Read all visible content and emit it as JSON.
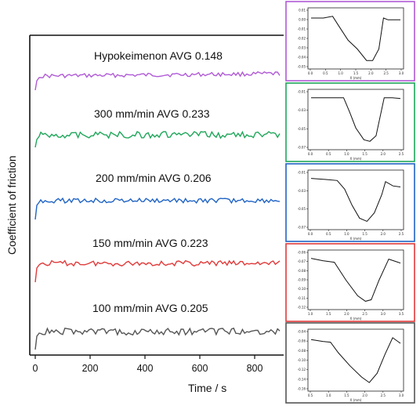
{
  "chart_data": [
    {
      "type": "line",
      "xlabel": "Time / s",
      "ylabel": "Coefficient of friction",
      "x_ticks": [
        0,
        200,
        400,
        600,
        800
      ],
      "xlim": [
        0,
        900
      ],
      "series": [
        {
          "name": "Hypokeimenon",
          "label": "Hypokeimenon AVG 0.148",
          "avg": 0.148,
          "color": "#b05ad6"
        },
        {
          "name": "300 mm/min",
          "label": "300 mm/min AVG 0.233",
          "avg": 0.233,
          "color": "#1fa65a"
        },
        {
          "name": "200 mm/min",
          "label": "200 mm/min AVG 0.206",
          "avg": 0.206,
          "color": "#1f63c4"
        },
        {
          "name": "150 mm/min",
          "label": "150 mm/min AVG 0.223",
          "avg": 0.223,
          "color": "#e03a3a"
        },
        {
          "name": "100 mm/min",
          "label": "100 mm/min AVG 0.205",
          "avg": 0.205,
          "color": "#555555"
        }
      ]
    },
    {
      "type": "line",
      "border_color": "#b05ad6",
      "xlabel": "X (mm)",
      "x_ticks": [
        "0.0",
        "0.5",
        "1.0",
        "1.5",
        "2.0",
        "2.5",
        "3.0"
      ],
      "y_ticks": [
        "0.01",
        "0.00",
        "-0.01",
        "-0.02",
        "-0.03",
        "-0.04",
        "-0.05"
      ],
      "x": [
        0.0,
        0.4,
        0.7,
        0.9,
        1.2,
        1.5,
        1.8,
        2.0,
        2.2,
        2.35,
        2.5,
        2.9
      ],
      "y": [
        0.005,
        0.005,
        0.007,
        -0.004,
        -0.02,
        -0.03,
        -0.043,
        -0.043,
        -0.03,
        0.005,
        0.003,
        0.003
      ]
    },
    {
      "type": "line",
      "border_color": "#1fa65a",
      "xlabel": "X (mm)",
      "x_ticks": [
        "0.0",
        "0.5",
        "1.0",
        "1.5",
        "2.0",
        "2.5"
      ],
      "y_ticks": [
        "-0.01",
        "-0.03",
        "-0.05",
        "-0.07"
      ],
      "x": [
        0.0,
        0.3,
        0.8,
        0.95,
        1.1,
        1.3,
        1.45,
        1.6,
        1.8,
        2.0,
        2.2
      ],
      "y": [
        -0.012,
        -0.012,
        -0.012,
        -0.03,
        -0.05,
        -0.065,
        -0.067,
        -0.06,
        -0.012,
        -0.012,
        -0.013
      ]
    },
    {
      "type": "line",
      "border_color": "#1f63c4",
      "xlabel": "X (mm)",
      "x_ticks": [
        "0.0",
        "0.5",
        "1.0",
        "1.5",
        "2.0",
        "2.5"
      ],
      "y_ticks": [
        "-0.01",
        "-0.03",
        "-0.05",
        "-0.07"
      ],
      "x": [
        0.0,
        0.4,
        0.7,
        0.9,
        1.1,
        1.3,
        1.5,
        1.7,
        1.9,
        2.0,
        2.2,
        2.4
      ],
      "y": [
        -0.015,
        -0.016,
        -0.017,
        -0.025,
        -0.04,
        -0.052,
        -0.055,
        -0.047,
        -0.03,
        -0.018,
        -0.022,
        -0.023
      ]
    },
    {
      "type": "line",
      "border_color": "#e03a3a",
      "xlabel": "X (mm)",
      "x_ticks": [
        "1.0",
        "1.5",
        "2.0",
        "2.5",
        "3.0",
        "3.5"
      ],
      "y_ticks": [
        "-0.06",
        "-0.07",
        "-0.08",
        "-0.09",
        "-0.10",
        "-0.11",
        "-0.12"
      ],
      "x": [
        1.0,
        1.3,
        1.6,
        1.9,
        2.2,
        2.4,
        2.55,
        2.75,
        3.0,
        3.3
      ],
      "y": [
        -0.062,
        -0.065,
        -0.067,
        -0.09,
        -0.11,
        -0.117,
        -0.115,
        -0.09,
        -0.063,
        -0.068
      ]
    },
    {
      "type": "line",
      "border_color": "#555555",
      "xlabel": "X (mm)",
      "x_ticks": [
        "0.5",
        "1.0",
        "1.5",
        "2.0",
        "2.5",
        "3.0"
      ],
      "y_ticks": [
        "-0.04",
        "-0.06",
        "-0.08",
        "-0.10",
        "-0.12",
        "-0.14",
        "-0.16"
      ],
      "x": [
        0.5,
        0.8,
        1.0,
        1.2,
        1.5,
        1.8,
        2.0,
        2.2,
        2.4,
        2.6,
        2.8
      ],
      "y": [
        -0.04,
        -0.045,
        -0.047,
        -0.075,
        -0.11,
        -0.14,
        -0.155,
        -0.13,
        -0.08,
        -0.035,
        -0.05
      ]
    }
  ]
}
